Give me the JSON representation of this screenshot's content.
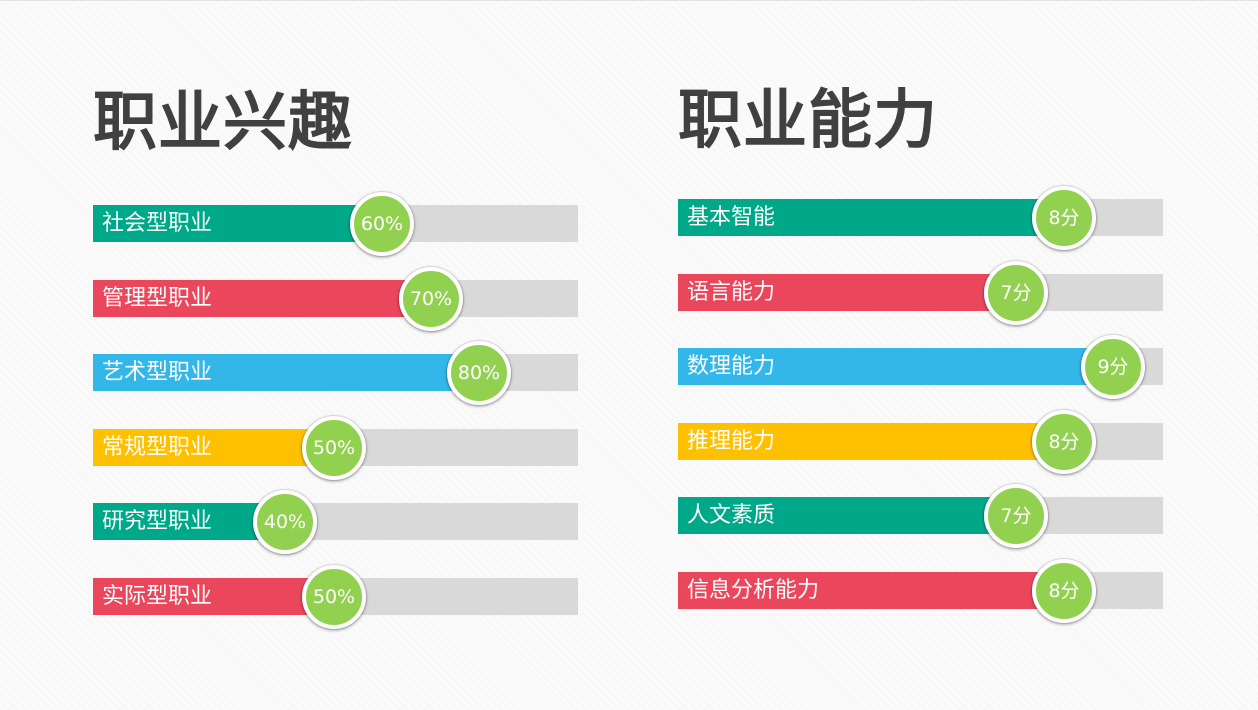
{
  "chart_data": [
    {
      "type": "bar",
      "title": "职业兴趣",
      "unit": "percent",
      "xlim": [
        0,
        100
      ],
      "categories": [
        "社会型职业",
        "管理型职业",
        "艺术型职业",
        "常规型职业",
        "研究型职业",
        "实际型职业"
      ],
      "values": [
        60,
        70,
        80,
        50,
        40,
        50
      ],
      "value_labels": [
        "60%",
        "70%",
        "80%",
        "50%",
        "40%",
        "50%"
      ],
      "bar_colors": [
        "#00a88a",
        "#eb475c",
        "#33b7e8",
        "#ffc000",
        "#00a88a",
        "#eb475c"
      ],
      "bubble_color": "#92d050",
      "track_color": "#d9d9d9"
    },
    {
      "type": "bar",
      "title": "职业能力",
      "unit": "score",
      "xlim": [
        0,
        10
      ],
      "categories": [
        "基本智能",
        "语言能力",
        "数理能力",
        "推理能力",
        "人文素质",
        "信息分析能力"
      ],
      "values": [
        8,
        7,
        9,
        8,
        7,
        8
      ],
      "value_labels": [
        "8分",
        "7分",
        "9分",
        "8分",
        "7分",
        "8分"
      ],
      "bar_colors": [
        "#00a88a",
        "#eb475c",
        "#33b7e8",
        "#ffc000",
        "#00a88a",
        "#eb475c"
      ],
      "bubble_color": "#92d050",
      "track_color": "#d9d9d9"
    }
  ]
}
